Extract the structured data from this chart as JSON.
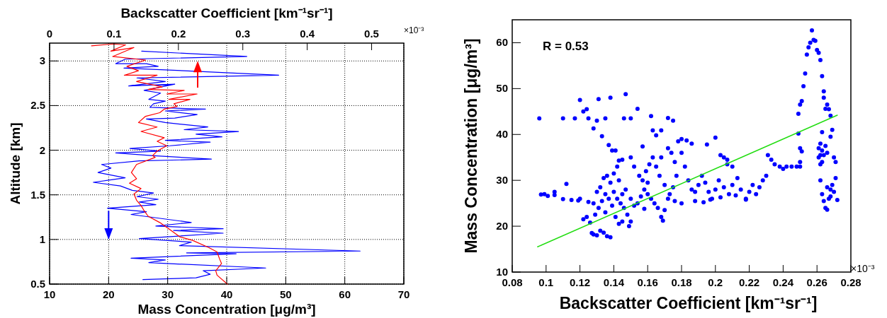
{
  "chart_data": [
    {
      "type": "line",
      "x2label": "Backscatter Coefficient [km⁻¹sr⁻¹]",
      "xlabel": "Mass Concentration [μg/m³]",
      "ylabel": "Altitude [km]",
      "xlim": [
        10,
        70
      ],
      "xticks": [
        10,
        20,
        30,
        40,
        50,
        60,
        70
      ],
      "x2lim": [
        0,
        0.55
      ],
      "x2ticks": [
        0,
        0.1,
        0.2,
        0.3,
        0.4,
        0.5
      ],
      "ylim": [
        0.5,
        3.2
      ],
      "yticks": [
        0.5,
        1,
        1.5,
        2,
        2.5,
        3
      ],
      "grid": true,
      "annotations": [
        "×10⁻³"
      ],
      "series": [
        {
          "color": "#0000ff",
          "x": [
            25.6,
            43.4,
            22.8,
            21.2,
            26.4,
            28.4,
            22.6,
            32.8,
            48.8,
            24.8,
            29.6,
            23.4,
            31.2,
            26,
            28.8,
            26.8,
            29.6,
            27.6,
            27,
            36.4,
            29.6,
            35,
            31.2,
            26.4,
            29.6,
            36.8,
            32.8,
            42,
            34.8,
            39.2,
            29.6,
            37.2,
            30.4,
            23.6,
            28.8,
            21.2,
            27.2,
            37.4,
            25.2,
            18.8,
            20.4,
            18.2,
            22.8,
            17.4,
            22,
            24,
            27.6,
            24.8,
            28.4,
            25.2,
            28,
            19.8,
            26.4,
            23.8,
            34,
            28,
            39.4,
            31,
            39.4,
            25.2,
            34,
            32,
            62.6,
            33.2,
            41.6,
            23.8,
            29.6,
            26.8,
            46.6,
            36,
            37.2,
            34.8,
            25.8
          ],
          "values": [
            3.11,
            3.05,
            3.02,
            2.97,
            2.97,
            2.94,
            2.92,
            2.89,
            2.84,
            2.81,
            2.77,
            2.72,
            2.74,
            2.67,
            2.64,
            2.57,
            2.55,
            2.52,
            2.48,
            2.46,
            2.44,
            2.4,
            2.36,
            2.35,
            2.31,
            2.26,
            2.23,
            2.21,
            2.18,
            2.15,
            2.11,
            2.09,
            2.05,
            2.02,
            1.99,
            1.97,
            1.94,
            1.9,
            1.88,
            1.84,
            1.8,
            1.75,
            1.69,
            1.64,
            1.6,
            1.55,
            1.52,
            1.48,
            1.45,
            1.42,
            1.39,
            1.35,
            1.31,
            1.28,
            1.19,
            1.15,
            1.12,
            1.1,
            1.07,
            1.01,
            0.97,
            0.93,
            0.87,
            0.85,
            0.84,
            0.79,
            0.77,
            0.74,
            0.68,
            0.65,
            0.61,
            0.57,
            0.55
          ]
        },
        {
          "color": "#ff0000",
          "axis": "x2",
          "x": [
            0.065,
            0.098,
            0.118,
            0.095,
            0.131,
            0.098,
            0.149,
            0.12,
            0.138,
            0.116,
            0.167,
            0.135,
            0.175,
            0.153,
            0.209,
            0.182,
            0.229,
            0.185,
            0.218,
            0.193,
            0.198,
            0.178,
            0.171,
            0.149,
            0.138,
            0.167,
            0.142,
            0.178,
            0.167,
            0.182,
            0.167,
            0.16,
            0.164,
            0.135,
            0.127,
            0.135,
            0.124,
            0.142,
            0.131,
            0.135,
            0.142,
            0.147,
            0.153,
            0.171,
            0.185,
            0.202,
            0.222,
            0.247,
            0.26,
            0.264,
            0.267,
            0.258,
            0.26,
            0.276
          ],
          "values": [
            3.17,
            3.19,
            3.18,
            3.11,
            3.15,
            3.05,
            3.01,
            2.94,
            2.89,
            2.84,
            2.84,
            2.77,
            2.71,
            2.68,
            2.67,
            2.63,
            2.63,
            2.57,
            2.57,
            2.52,
            2.49,
            2.46,
            2.42,
            2.38,
            2.31,
            2.26,
            2.21,
            2.14,
            2.1,
            2.05,
            1.99,
            1.94,
            1.92,
            1.84,
            1.75,
            1.68,
            1.63,
            1.57,
            1.51,
            1.44,
            1.38,
            1.32,
            1.26,
            1.19,
            1.12,
            1.03,
            0.99,
            0.91,
            0.86,
            0.78,
            0.73,
            0.65,
            0.6,
            0.5
          ]
        }
      ]
    },
    {
      "type": "scatter",
      "xlabel": "Backscatter Coefficient [km⁻¹sr⁻¹]",
      "ylabel": "Mass Concentration [μg/m³]",
      "xlim": [
        0.08,
        0.28
      ],
      "xticks": [
        0.08,
        0.1,
        0.12,
        0.14,
        0.16,
        0.18,
        0.2,
        0.22,
        0.24,
        0.26,
        0.28
      ],
      "ylim": [
        10,
        65
      ],
      "yticks": [
        10,
        20,
        30,
        40,
        50,
        60
      ],
      "annotations": [
        "R = 0.53",
        "×10⁻³"
      ],
      "series": [
        {
          "color": "#0000ff",
          "marker": "circle",
          "x": [
            0.096,
            0.11,
            0.117,
            0.12,
            0.122,
            0.124,
            0.125,
            0.128,
            0.13,
            0.131,
            0.133,
            0.135,
            0.137,
            0.139,
            0.141,
            0.138,
            0.143,
            0.146,
            0.147,
            0.15,
            0.154,
            0.157,
            0.162,
            0.163,
            0.165,
            0.168,
            0.172,
            0.175,
            0.18,
            0.183,
            0.186,
            0.195,
            0.2,
            0.203,
            0.207,
            0.097,
            0.099,
            0.101,
            0.105,
            0.105,
            0.112,
            0.11,
            0.115,
            0.119,
            0.12,
            0.122,
            0.124,
            0.126,
            0.127,
            0.128,
            0.13,
            0.132,
            0.134,
            0.136,
            0.138,
            0.129,
            0.131,
            0.133,
            0.135,
            0.137,
            0.139,
            0.141,
            0.143,
            0.145,
            0.13,
            0.132,
            0.134,
            0.136,
            0.138,
            0.14,
            0.142,
            0.144,
            0.146,
            0.148,
            0.15,
            0.149,
            0.14,
            0.142,
            0.145,
            0.143,
            0.147,
            0.15,
            0.152,
            0.154,
            0.156,
            0.158,
            0.16,
            0.162,
            0.164,
            0.166,
            0.168,
            0.169,
            0.17,
            0.172,
            0.15,
            0.152,
            0.155,
            0.157,
            0.159,
            0.161,
            0.163,
            0.165,
            0.167,
            0.17,
            0.173,
            0.175,
            0.177,
            0.176,
            0.174,
            0.172,
            0.168,
            0.178,
            0.18,
            0.182,
            0.184,
            0.186,
            0.188,
            0.19,
            0.192,
            0.194,
            0.196,
            0.198,
            0.2,
            0.202,
            0.205,
            0.208,
            0.21,
            0.213,
            0.215,
            0.218,
            0.22,
            0.222,
            0.188,
            0.193,
            0.197,
            0.203,
            0.212,
            0.218,
            0.18,
            0.176,
            0.158,
            0.16,
            0.145,
            0.135,
            0.128,
            0.125,
            0.205,
            0.207,
            0.21,
            0.224,
            0.226,
            0.228,
            0.23,
            0.231,
            0.233,
            0.235,
            0.238,
            0.24,
            0.242,
            0.245,
            0.248,
            0.25,
            0.25,
            0.249,
            0.25,
            0.251,
            0.249,
            0.25,
            0.251,
            0.252,
            0.253,
            0.254,
            0.255,
            0.256,
            0.257,
            0.258,
            0.259,
            0.26,
            0.261,
            0.262,
            0.263,
            0.264,
            0.264,
            0.265,
            0.266,
            0.267,
            0.268,
            0.269,
            0.268,
            0.27,
            0.271,
            0.263,
            0.262,
            0.261,
            0.263,
            0.264,
            0.265,
            0.266,
            0.262,
            0.263,
            0.262,
            0.263,
            0.264,
            0.265,
            0.266,
            0.267,
            0.268,
            0.269,
            0.27,
            0.271,
            0.272,
            0.266,
            0.268,
            0.262,
            0.261
          ],
          "values": [
            43.5,
            43.5,
            43.5,
            47.5,
            45,
            45.5,
            43.5,
            41.3,
            43,
            47.7,
            39.6,
            43.5,
            37.7,
            36.5,
            36.5,
            48,
            34.3,
            43.5,
            48.8,
            43.5,
            45.6,
            37.4,
            44,
            40.9,
            39.8,
            40.9,
            43.6,
            43,
            39,
            38.7,
            38,
            37.8,
            39.3,
            35.5,
            33.5,
            26.9,
            27,
            26.6,
            27.5,
            26.8,
            29.2,
            25.9,
            25.7,
            25.6,
            26,
            21.5,
            22,
            20.8,
            18.5,
            18.2,
            18,
            19,
            18.6,
            17.8,
            17.6,
            22.5,
            24,
            25.5,
            27,
            26,
            24.5,
            22,
            20.5,
            21,
            27.5,
            28.5,
            30.5,
            31,
            29.5,
            27.5,
            26,
            25,
            24,
            22.5,
            21,
            20,
            31.5,
            33,
            34.5,
            30,
            28,
            26,
            24.5,
            25,
            26.5,
            28,
            27,
            26,
            25,
            24,
            22,
            21.2,
            23.5,
            26,
            35,
            33,
            31,
            30,
            32,
            33.5,
            35,
            33,
            31,
            29,
            27,
            28.5,
            31,
            34,
            36,
            37,
            35,
            38.5,
            36,
            33,
            30,
            28,
            27.5,
            29,
            31,
            29.5,
            27.5,
            26,
            28,
            30,
            28.5,
            27,
            29,
            30.5,
            28,
            26,
            27.5,
            29,
            25.5,
            25.2,
            25.8,
            26.3,
            26.7,
            25.8,
            25,
            25.5,
            23.8,
            29.5,
            27,
            23,
            25,
            25.3,
            35,
            34.5,
            33,
            27,
            28.5,
            30,
            31,
            35.5,
            34.5,
            33.5,
            33,
            32.5,
            33,
            33,
            33,
            34,
            33,
            40.2,
            37,
            36.3,
            44.5,
            46.5,
            47.3,
            50.5,
            53.3,
            57.4,
            59,
            60,
            62.7,
            60.6,
            60.4,
            58.4,
            57.8,
            56.2,
            52.7,
            49.4,
            48,
            45.6,
            46.5,
            45.5,
            44.1,
            41,
            39.5,
            35,
            34,
            40.5,
            38,
            37,
            36.5,
            35.5,
            37.5,
            36,
            35.5,
            34,
            30,
            27,
            25.5,
            24,
            23.6,
            26,
            28,
            29,
            27.5,
            30.5,
            25.7,
            28.5,
            26.5,
            33.5,
            35
          ]
        },
        {
          "type": "line",
          "color": "#22dd11",
          "x": [
            0.095,
            0.272
          ],
          "values": [
            15.5,
            44.2
          ]
        }
      ]
    }
  ]
}
